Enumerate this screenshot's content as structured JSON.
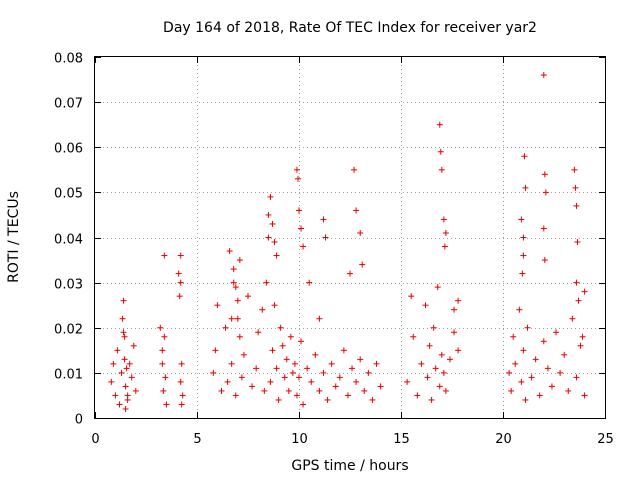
{
  "chart_data": {
    "type": "scatter",
    "title": "Day 164 of 2018, Rate Of TEC Index for receiver yar2",
    "xlabel": "GPS time / hours",
    "ylabel": "ROTI / TECUs",
    "xlim": [
      0,
      25
    ],
    "ylim": [
      0,
      0.08
    ],
    "xticks": [
      0,
      5,
      10,
      15,
      20,
      25
    ],
    "xtick_labels": [
      "0",
      "5",
      "10",
      "15",
      "20",
      "25"
    ],
    "yticks": [
      0,
      0.01,
      0.02,
      0.03,
      0.04,
      0.05,
      0.06,
      0.07,
      0.08
    ],
    "ytick_labels": [
      "0",
      "0.01",
      "0.02",
      "0.03",
      "0.04",
      "0.05",
      "0.06",
      "0.07",
      "0.08"
    ],
    "grid": true,
    "marker": "+",
    "color": "#e60000",
    "series": [
      {
        "name": "ROTI",
        "x": [
          0.8,
          0.9,
          1.0,
          1.1,
          1.2,
          1.3,
          1.4,
          1.45,
          1.5,
          1.6,
          1.7,
          1.8,
          1.9,
          2.0,
          1.35,
          1.45,
          1.5,
          1.55,
          1.6,
          1.4,
          3.2,
          3.3,
          3.35,
          3.4,
          3.45,
          3.5,
          3.3,
          3.4,
          4.1,
          4.15,
          4.2,
          4.25,
          4.3,
          4.2,
          4.25,
          4.2,
          5.8,
          5.9,
          6.0,
          6.2,
          6.4,
          6.5,
          6.6,
          6.7,
          6.8,
          6.9,
          7.0,
          7.1,
          7.2,
          7.3,
          7.5,
          7.7,
          7.9,
          8.0,
          8.2,
          8.3,
          8.4,
          8.5,
          8.6,
          8.7,
          8.8,
          8.9,
          9.0,
          9.1,
          9.2,
          9.3,
          9.4,
          9.5,
          9.6,
          9.7,
          9.8,
          9.9,
          10.0,
          10.1,
          10.2,
          10.4,
          10.6,
          10.8,
          11.0,
          11.2,
          11.4,
          11.6,
          11.8,
          12.0,
          12.2,
          12.4,
          12.6,
          12.8,
          13.0,
          13.2,
          13.4,
          13.6,
          13.8,
          14.0,
          6.8,
          6.9,
          7.0,
          7.1,
          6.7,
          8.5,
          8.6,
          8.7,
          8.8,
          8.9,
          9.9,
          9.95,
          10.0,
          10.1,
          10.2,
          11.2,
          11.3,
          12.5,
          12.7,
          12.8,
          13.0,
          13.1,
          11.0,
          10.5,
          15.3,
          15.5,
          15.6,
          15.8,
          16.0,
          16.2,
          16.3,
          16.4,
          16.5,
          16.6,
          16.7,
          16.8,
          16.9,
          17.0,
          17.1,
          17.2,
          17.4,
          17.6,
          17.8,
          16.9,
          16.95,
          17.0,
          17.1,
          17.2,
          17.15,
          17.6,
          17.8,
          20.3,
          20.4,
          20.5,
          20.6,
          20.8,
          20.9,
          21.0,
          21.1,
          21.2,
          21.4,
          21.6,
          21.8,
          22.0,
          22.2,
          22.4,
          22.6,
          22.8,
          23.0,
          23.2,
          23.4,
          23.6,
          23.8,
          24.0,
          20.9,
          21.0,
          21.05,
          21.1,
          21.0,
          20.95,
          22.0,
          22.05,
          22.1,
          22.0,
          22.05,
          23.5,
          23.55,
          23.6,
          23.65,
          23.6,
          23.7,
          23.9,
          24.0
        ],
        "y": [
          0.008,
          0.012,
          0.005,
          0.015,
          0.003,
          0.01,
          0.026,
          0.018,
          0.007,
          0.004,
          0.012,
          0.009,
          0.016,
          0.006,
          0.022,
          0.013,
          0.002,
          0.011,
          0.005,
          0.019,
          0.02,
          0.012,
          0.006,
          0.036,
          0.009,
          0.003,
          0.015,
          0.018,
          0.032,
          0.027,
          0.036,
          0.012,
          0.005,
          0.008,
          0.003,
          0.03,
          0.01,
          0.015,
          0.025,
          0.006,
          0.02,
          0.008,
          0.037,
          0.012,
          0.03,
          0.005,
          0.022,
          0.018,
          0.009,
          0.014,
          0.027,
          0.007,
          0.011,
          0.019,
          0.024,
          0.006,
          0.03,
          0.04,
          0.008,
          0.015,
          0.025,
          0.011,
          0.004,
          0.02,
          0.016,
          0.009,
          0.013,
          0.006,
          0.018,
          0.01,
          0.012,
          0.005,
          0.009,
          0.017,
          0.003,
          0.011,
          0.008,
          0.014,
          0.006,
          0.01,
          0.004,
          0.012,
          0.007,
          0.009,
          0.015,
          0.005,
          0.011,
          0.008,
          0.013,
          0.006,
          0.01,
          0.004,
          0.012,
          0.007,
          0.033,
          0.029,
          0.026,
          0.035,
          0.022,
          0.045,
          0.049,
          0.043,
          0.039,
          0.036,
          0.055,
          0.053,
          0.046,
          0.042,
          0.038,
          0.044,
          0.04,
          0.032,
          0.055,
          0.046,
          0.041,
          0.034,
          0.022,
          0.03,
          0.008,
          0.027,
          0.018,
          0.005,
          0.012,
          0.025,
          0.009,
          0.016,
          0.004,
          0.02,
          0.011,
          0.029,
          0.007,
          0.014,
          0.01,
          0.006,
          0.013,
          0.019,
          0.026,
          0.065,
          0.059,
          0.055,
          0.044,
          0.041,
          0.038,
          0.024,
          0.015,
          0.01,
          0.006,
          0.018,
          0.012,
          0.024,
          0.008,
          0.015,
          0.004,
          0.02,
          0.009,
          0.013,
          0.005,
          0.017,
          0.011,
          0.007,
          0.019,
          0.01,
          0.014,
          0.006,
          0.022,
          0.009,
          0.016,
          0.005,
          0.044,
          0.04,
          0.058,
          0.051,
          0.036,
          0.032,
          0.076,
          0.054,
          0.05,
          0.042,
          0.035,
          0.055,
          0.051,
          0.047,
          0.039,
          0.03,
          0.026,
          0.018,
          0.028
        ]
      }
    ]
  }
}
